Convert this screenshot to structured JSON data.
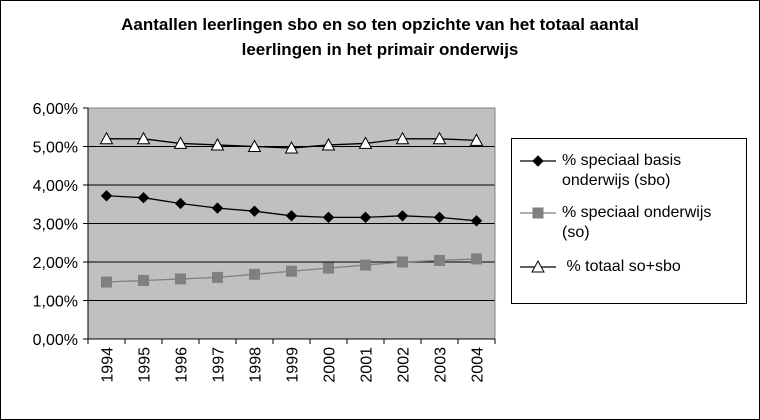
{
  "chart_data": {
    "type": "line",
    "title_lines": [
      "Aantallen leerlingen sbo en so ten opzichte van het totaal aantal",
      "leerlingen in het primair onderwijs"
    ],
    "categories": [
      "1994",
      "1995",
      "1996",
      "1997",
      "1998",
      "1999",
      "2000",
      "2001",
      "2002",
      "2003",
      "2004"
    ],
    "y_ticks": [
      "0,00%",
      "1,00%",
      "2,00%",
      "3,00%",
      "4,00%",
      "5,00%",
      "6,00%"
    ],
    "ylim": [
      0,
      6
    ],
    "grid": true,
    "legend_position": "right",
    "plot_background": "#c0c0c0",
    "series": [
      {
        "name": "% speciaal basis onderwijs (sbo)",
        "label_lines": [
          "% speciaal basis",
          "onderwijs (sbo)"
        ],
        "marker": "diamond",
        "color": "#000000",
        "values": [
          3.72,
          3.67,
          3.52,
          3.4,
          3.32,
          3.2,
          3.16,
          3.16,
          3.2,
          3.16,
          3.07
        ]
      },
      {
        "name": "% speciaal onderwijs (so)",
        "label_lines": [
          "% speciaal onderwijs",
          "(so)"
        ],
        "marker": "square",
        "color": "#808080",
        "values": [
          1.48,
          1.52,
          1.56,
          1.6,
          1.68,
          1.76,
          1.84,
          1.92,
          2.0,
          2.04,
          2.08
        ]
      },
      {
        "name": " % totaal so+sbo",
        "label_lines": [
          " % totaal so+sbo"
        ],
        "marker": "triangle",
        "color": "#000000",
        "values": [
          5.2,
          5.2,
          5.08,
          5.04,
          5.0,
          4.96,
          5.04,
          5.08,
          5.2,
          5.2,
          5.16
        ]
      }
    ]
  }
}
